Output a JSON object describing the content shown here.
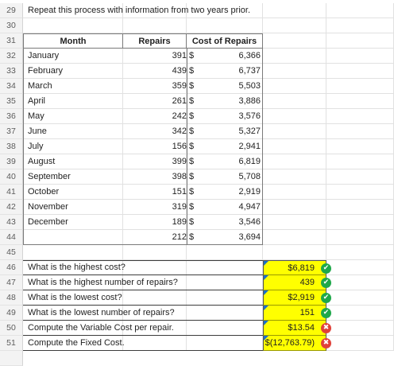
{
  "sheet": {
    "row29": {
      "num": "29",
      "text": "Repeat this process with information from two years prior."
    },
    "row30": {
      "num": "30"
    },
    "header": {
      "num": "31",
      "month": "Month",
      "repairs": "Repairs",
      "cost": "Cost of Repairs"
    },
    "data": [
      {
        "num": "32",
        "month": "January",
        "repairs": "391",
        "sym": "$",
        "cost": "6,366"
      },
      {
        "num": "33",
        "month": "February",
        "repairs": "439",
        "sym": "$",
        "cost": "6,737"
      },
      {
        "num": "34",
        "month": "March",
        "repairs": "359",
        "sym": "$",
        "cost": "5,503"
      },
      {
        "num": "35",
        "month": "April",
        "repairs": "261",
        "sym": "$",
        "cost": "3,886"
      },
      {
        "num": "36",
        "month": "May",
        "repairs": "242",
        "sym": "$",
        "cost": "3,576"
      },
      {
        "num": "37",
        "month": "June",
        "repairs": "342",
        "sym": "$",
        "cost": "5,327"
      },
      {
        "num": "38",
        "month": "July",
        "repairs": "156",
        "sym": "$",
        "cost": "2,941"
      },
      {
        "num": "39",
        "month": "August",
        "repairs": "399",
        "sym": "$",
        "cost": "6,819"
      },
      {
        "num": "40",
        "month": "September",
        "repairs": "398",
        "sym": "$",
        "cost": "5,708"
      },
      {
        "num": "41",
        "month": "October",
        "repairs": "151",
        "sym": "$",
        "cost": "2,919"
      },
      {
        "num": "42",
        "month": "November",
        "repairs": "319",
        "sym": "$",
        "cost": "4,947"
      },
      {
        "num": "43",
        "month": "December",
        "repairs": "189",
        "sym": "$",
        "cost": "3,546"
      },
      {
        "num": "44",
        "month": "",
        "repairs": "212",
        "sym": "$",
        "cost": "3,694"
      }
    ],
    "row45": {
      "num": "45"
    },
    "questions": [
      {
        "num": "46",
        "text": "What is the highest cost?",
        "answer": "$6,819",
        "status": "correct",
        "icon": "check-icon"
      },
      {
        "num": "47",
        "text": "What is the highest number of repairs?",
        "answer": "439",
        "status": "correct",
        "icon": "check-icon"
      },
      {
        "num": "48",
        "text": "What is the lowest cost?",
        "answer": "$2,919",
        "status": "correct",
        "icon": "check-icon"
      },
      {
        "num": "49",
        "text": "What is the lowest number of repairs?",
        "answer": "151",
        "status": "correct",
        "icon": "check-icon"
      },
      {
        "num": "50",
        "text": "Compute the Variable Cost per repair.",
        "answer": "$13.54",
        "status": "incorrect",
        "icon": "x-icon"
      },
      {
        "num": "51",
        "text": "Compute the Fixed Cost.",
        "answer": "$(12,763.79)",
        "status": "incorrect",
        "icon": "x-icon"
      }
    ]
  },
  "colors": {
    "answer_fill": "#ffff00",
    "correct": "#1fa84a",
    "incorrect": "#e0413a",
    "comment_flag": "#1b6fc9"
  }
}
